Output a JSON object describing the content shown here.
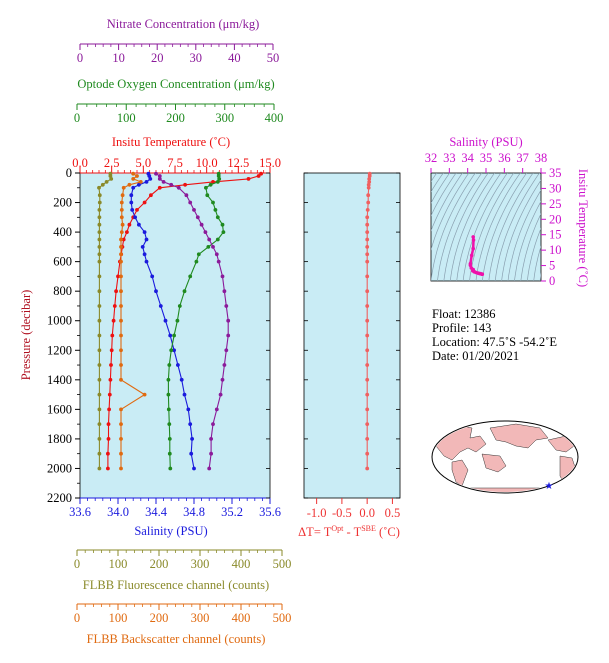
{
  "axes": {
    "nitrate": {
      "label": "Nitrate Concentration (μm/kg)",
      "ticks": [
        "0",
        "10",
        "20",
        "30",
        "40",
        "50"
      ],
      "color": "#8b1a9a"
    },
    "oxygen": {
      "label": "Optode Oxygen Concentration (μm/kg)",
      "ticks": [
        "0",
        "100",
        "200",
        "300",
        "400"
      ],
      "color": "#1f8a1f"
    },
    "temperature": {
      "label": "Insitu Temperature (˚C)",
      "ticks": [
        "0.0",
        "2.5",
        "5.0",
        "7.5",
        "10.0",
        "12.5",
        "15.0"
      ],
      "color": "#ee1111"
    },
    "pressure": {
      "label": "Pressure (decibar)",
      "ticks": [
        "0",
        "200",
        "400",
        "600",
        "800",
        "1000",
        "1200",
        "1400",
        "1600",
        "1800",
        "2000",
        "2200"
      ],
      "color": "#b01020"
    },
    "salinity": {
      "label": "Salinity (PSU)",
      "ticks": [
        "33.6",
        "34.0",
        "34.4",
        "34.8",
        "35.2",
        "35.6"
      ],
      "color": "#1a1add"
    },
    "flbb_fluor": {
      "label": "FLBB Fluorescence channel (counts)",
      "ticks": [
        "0",
        "100",
        "200",
        "300",
        "400",
        "500"
      ],
      "color": "#8a8a2a"
    },
    "flbb_back": {
      "label": "FLBB Backscatter channel (counts)",
      "ticks": [
        "0",
        "100",
        "200",
        "300",
        "400",
        "500"
      ],
      "color": "#e06a10"
    },
    "dt": {
      "label_main": "ΔT= T",
      "label_sup1": "Opt",
      "label_mid": " - T",
      "label_sup2": "SBE",
      "label_end": " (˚C)",
      "ticks": [
        "-1.0",
        "-0.5",
        "0.0",
        "0.5"
      ],
      "color": "#ee3333"
    },
    "ts_salinity": {
      "label": "Salinity (PSU)",
      "ticks": [
        "32",
        "33",
        "34",
        "35",
        "36",
        "37",
        "38"
      ],
      "color": "#cc11cc"
    },
    "ts_temperature": {
      "label": "Insitu Temperature (˚C)",
      "ticks": [
        "0",
        "5",
        "10",
        "15",
        "20",
        "25",
        "30",
        "35"
      ],
      "color": "#cc11cc"
    }
  },
  "info": {
    "float": "Float:  12386",
    "profile": "Profile:  143",
    "location": "Location:  47.5˚S  -54.2˚E",
    "date": "Date:  01/20/2021"
  },
  "colors": {
    "panel_bg": "#c9ecf5"
  },
  "chart_data": {
    "type": "line",
    "x_ranges": {
      "temperature": [
        0,
        15
      ],
      "salinity": [
        33.6,
        35.6
      ],
      "oxygen": [
        0,
        400
      ],
      "nitrate": [
        0,
        50
      ],
      "flbb_fluor": [
        0,
        500
      ],
      "flbb_back": [
        0,
        500
      ],
      "dt": [
        -1.25,
        0.65
      ]
    },
    "ylim": [
      2200,
      0
    ],
    "pressure": [
      5,
      20,
      40,
      60,
      80,
      100,
      150,
      200,
      250,
      300,
      350,
      400,
      450,
      500,
      550,
      600,
      700,
      800,
      900,
      1000,
      1100,
      1200,
      1300,
      1400,
      1500,
      1600,
      1700,
      1800,
      1900,
      2000
    ],
    "series": [
      {
        "name": "Insitu Temperature",
        "axis": "temperature",
        "color": "#ee1111",
        "values": [
          14.3,
          14.1,
          13.3,
          10.5,
          8.3,
          6.3,
          5.6,
          5.1,
          4.5,
          4.2,
          3.9,
          3.7,
          3.45,
          3.35,
          3.25,
          3.15,
          3.0,
          2.85,
          2.75,
          2.65,
          2.55,
          2.5,
          2.45,
          2.4,
          2.35,
          2.3,
          2.25,
          2.25,
          2.2,
          2.2
        ]
      },
      {
        "name": "Salinity",
        "axis": "salinity",
        "color": "#1a1add",
        "values": [
          34.32,
          34.33,
          34.34,
          34.3,
          34.22,
          34.16,
          34.14,
          34.14,
          34.15,
          34.18,
          34.22,
          34.28,
          34.3,
          34.26,
          34.28,
          34.3,
          34.36,
          34.4,
          34.45,
          34.5,
          34.55,
          34.59,
          34.63,
          34.67,
          34.7,
          34.74,
          34.76,
          34.78,
          34.77,
          34.8
        ]
      },
      {
        "name": "Optode Oxygen",
        "axis": "oxygen",
        "color": "#1f8a1f",
        "values": [
          292,
          292,
          293,
          290,
          275,
          265,
          268,
          280,
          285,
          290,
          300,
          302,
          290,
          270,
          250,
          245,
          232,
          220,
          210,
          205,
          198,
          192,
          188,
          186,
          186,
          187,
          188,
          189,
          189,
          190
        ]
      },
      {
        "name": "Nitrate",
        "axis": "nitrate",
        "color": "#8b1a9a",
        "values": [
          20,
          21,
          21,
          22,
          24,
          26,
          28,
          29,
          30,
          31,
          32,
          33,
          34,
          35,
          36,
          36.5,
          37.5,
          38,
          38.5,
          39,
          39,
          38.5,
          38,
          37.5,
          37,
          36,
          35,
          34.5,
          34.5,
          34
        ]
      },
      {
        "name": "FLBB Fluorescence",
        "axis": "flbb_fluor",
        "color": "#8a8a2a",
        "values": [
          80,
          80,
          82,
          70,
          60,
          50,
          52,
          52,
          51,
          51,
          51,
          51,
          51,
          51,
          51,
          51,
          51,
          51,
          51,
          51,
          51,
          51,
          51,
          51,
          51,
          51,
          51,
          51,
          51,
          51
        ]
      },
      {
        "name": "FLBB Backscatter",
        "axis": "flbb_back",
        "color": "#e06a10",
        "values": [
          140,
          150,
          140,
          160,
          130,
          115,
          112,
          110,
          110,
          110,
          112,
          110,
          108,
          108,
          108,
          108,
          108,
          108,
          108,
          108,
          108,
          108,
          108,
          108,
          170,
          108,
          108,
          108,
          108,
          108
        ]
      },
      {
        "name": "ΔT",
        "axis": "dt",
        "color": "#f06060",
        "values": [
          0.05,
          0.05,
          0.04,
          0.04,
          0.03,
          0.03,
          0.02,
          0.02,
          0.01,
          0.0,
          0.0,
          0.0,
          0.0,
          0.0,
          0.0,
          0.0,
          0.0,
          0.0,
          0.0,
          0.0,
          0.0,
          0.0,
          0.0,
          0.0,
          0.0,
          0.0,
          0.0,
          0.0,
          0.0,
          0.0
        ]
      }
    ],
    "ts_points": [
      [
        34.3,
        14.3
      ],
      [
        34.32,
        13.3
      ],
      [
        34.3,
        10.5
      ],
      [
        34.22,
        8.3
      ],
      [
        34.15,
        5.6
      ],
      [
        34.15,
        5.1
      ],
      [
        34.2,
        4.2
      ],
      [
        34.3,
        3.7
      ],
      [
        34.28,
        3.3
      ],
      [
        34.36,
        3.0
      ],
      [
        34.45,
        2.75
      ],
      [
        34.55,
        2.55
      ],
      [
        34.63,
        2.45
      ],
      [
        34.7,
        2.35
      ],
      [
        34.76,
        2.25
      ],
      [
        34.8,
        2.2
      ]
    ]
  }
}
